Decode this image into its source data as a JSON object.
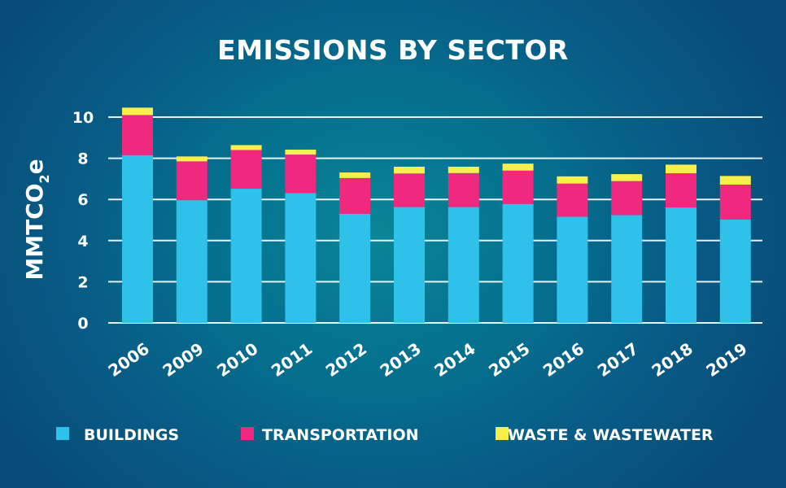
{
  "chart_data": {
    "type": "bar",
    "stacked": true,
    "title": "EMISSIONS BY SECTOR",
    "xlabel": "",
    "ylabel": "MMTCO",
    "ylabel_subscript": "2",
    "ylabel_suffix": "e",
    "ylim": [
      0,
      10
    ],
    "yticks": [
      0,
      2,
      4,
      6,
      8,
      10
    ],
    "grid": true,
    "legend_position": "bottom",
    "categories": [
      "2006",
      "2009",
      "2010",
      "2011",
      "2012",
      "2013",
      "2014",
      "2015",
      "2016",
      "2017",
      "2018",
      "2019"
    ],
    "series": [
      {
        "name": "BUILDINGS",
        "color": "#2ec1ea",
        "values": [
          8.15,
          5.96,
          6.52,
          6.31,
          5.3,
          5.63,
          5.63,
          5.78,
          5.16,
          5.24,
          5.61,
          5.03
        ]
      },
      {
        "name": "TRANSPORTATION",
        "color": "#f0297f",
        "values": [
          1.95,
          1.89,
          1.88,
          1.87,
          1.74,
          1.63,
          1.65,
          1.62,
          1.61,
          1.65,
          1.66,
          1.69
        ]
      },
      {
        "name": "WASTE & WASTEWATER",
        "color": "#f6ef4c",
        "values": [
          0.36,
          0.24,
          0.24,
          0.24,
          0.27,
          0.33,
          0.31,
          0.34,
          0.35,
          0.34,
          0.42,
          0.42
        ]
      }
    ]
  }
}
